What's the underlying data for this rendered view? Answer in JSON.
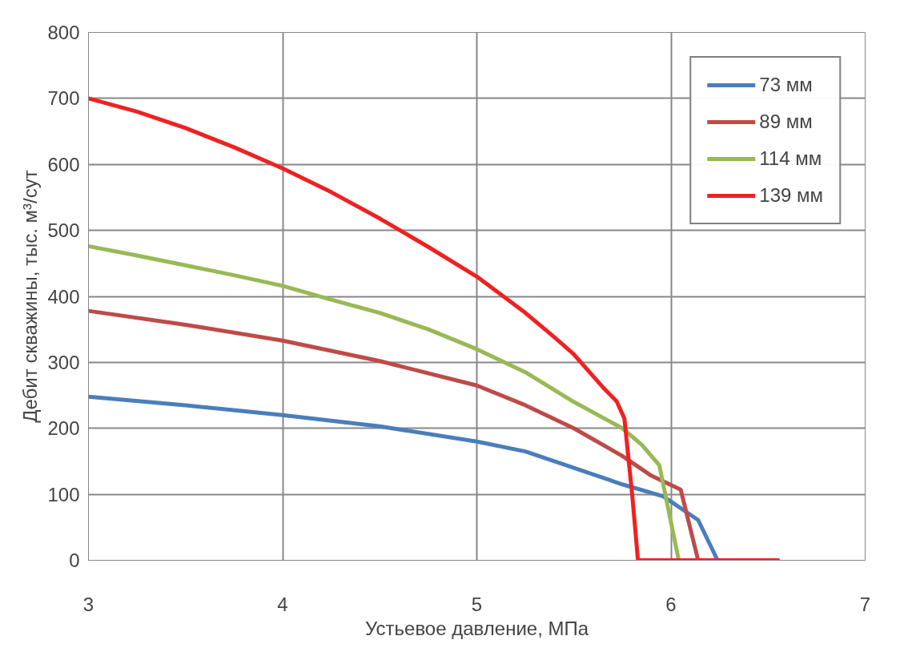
{
  "chart_data": {
    "type": "line",
    "xlabel": "Устьевое давление, МПа",
    "ylabel": "Дебит скважины, тыс. м³/сут",
    "xlim": [
      3,
      7
    ],
    "xticks": [
      3,
      4,
      5,
      6,
      7
    ],
    "ylim": [
      0,
      800
    ],
    "yticks": [
      0,
      100,
      200,
      300,
      400,
      500,
      600,
      700,
      800
    ],
    "grid": true,
    "legend": "top right",
    "marker": "none",
    "line_style": "solid",
    "series": [
      {
        "name": "73 мм",
        "color": "#4a7ebb",
        "x": [
          3,
          3.5,
          4,
          4.5,
          5,
          5.25,
          5.5,
          5.75,
          5.96,
          6.14,
          6.24,
          6.55
        ],
        "values": [
          248,
          235,
          220,
          203,
          180,
          165,
          140,
          115,
          97,
          61,
          0,
          0
        ]
      },
      {
        "name": "89 мм",
        "color": "#be4b48",
        "x": [
          3,
          3.5,
          4,
          4.5,
          5,
          5.25,
          5.5,
          5.75,
          5.9,
          6.05,
          6.14,
          6.55
        ],
        "values": [
          378,
          357,
          333,
          302,
          265,
          235,
          200,
          158,
          128,
          107,
          0,
          0
        ]
      },
      {
        "name": "114 мм",
        "color": "#98b954",
        "x": [
          3,
          3.25,
          3.5,
          3.75,
          4,
          4.25,
          4.5,
          4.75,
          5,
          5.25,
          5.5,
          5.75,
          5.85,
          5.94,
          6.04,
          6.55
        ],
        "values": [
          476,
          462,
          447,
          432,
          416,
          395,
          375,
          350,
          320,
          285,
          240,
          200,
          175,
          144,
          0,
          0
        ]
      },
      {
        "name": "139 мм",
        "color": "#ee2222",
        "x": [
          3,
          3.25,
          3.5,
          3.75,
          4,
          4.25,
          4.5,
          4.75,
          5,
          5.25,
          5.4,
          5.5,
          5.65,
          5.72,
          5.76,
          5.8,
          5.83,
          6.55
        ],
        "values": [
          700,
          680,
          655,
          626,
          594,
          558,
          518,
          475,
          430,
          375,
          338,
          312,
          262,
          241,
          215,
          100,
          0,
          0
        ]
      }
    ]
  }
}
